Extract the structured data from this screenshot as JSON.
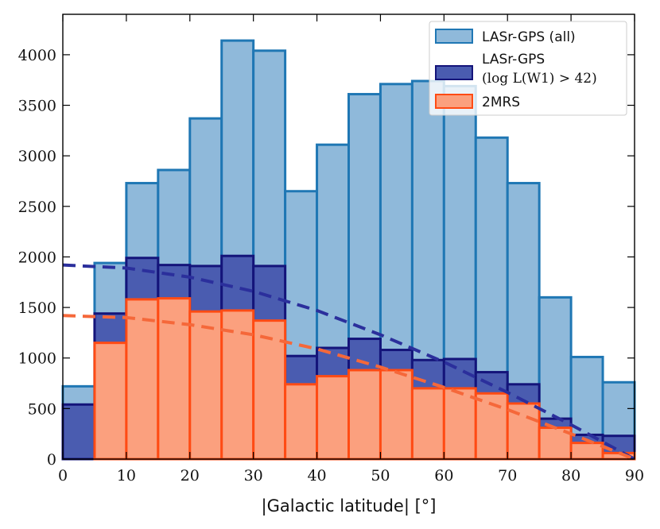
{
  "chart_data": {
    "type": "histogram",
    "xlabel": "|Galactic latitude| [°]",
    "ylabel": "",
    "xlim": [
      0,
      90
    ],
    "ylim": [
      0,
      4400
    ],
    "x_ticks": [
      0,
      10,
      20,
      30,
      40,
      50,
      60,
      70,
      80,
      90
    ],
    "y_ticks": [
      0,
      500,
      1000,
      1500,
      2000,
      2500,
      3000,
      3500,
      4000
    ],
    "bin_edges": [
      0,
      5,
      10,
      15,
      20,
      25,
      30,
      35,
      40,
      45,
      50,
      55,
      60,
      65,
      70,
      75,
      80,
      85,
      90
    ],
    "series": [
      {
        "name": "LASr-GPS (all)",
        "face_color": "#8fb9da",
        "edge_color": "#1f77b4",
        "values": [
          720,
          1940,
          2730,
          2860,
          3370,
          4140,
          4040,
          2650,
          3110,
          3610,
          3710,
          3740,
          3690,
          3180,
          2730,
          1600,
          1010,
          760
        ]
      },
      {
        "name": "LASr-GPS",
        "name_line2": "(log L(W1) > 42)",
        "face_color": "#4a5cb0",
        "edge_color": "#14147a",
        "values": [
          540,
          1440,
          1990,
          1920,
          1910,
          2010,
          1910,
          1020,
          1100,
          1190,
          1080,
          980,
          990,
          860,
          740,
          400,
          240,
          230
        ]
      },
      {
        "name": "2MRS",
        "face_color": "#fba07e",
        "edge_color": "#ff4b14",
        "values": [
          0,
          1150,
          1580,
          1590,
          1460,
          1470,
          1370,
          740,
          820,
          880,
          880,
          700,
          700,
          650,
          550,
          310,
          160,
          60
        ]
      }
    ],
    "fit_curves": [
      {
        "name": "LASr-GPS (log L(W1) > 42) fit",
        "color": "#2b2f9c",
        "x": [
          0,
          10,
          20,
          30,
          40,
          50,
          60,
          70,
          80,
          90
        ],
        "y": [
          1920,
          1890,
          1800,
          1660,
          1470,
          1230,
          960,
          660,
          340,
          0
        ]
      },
      {
        "name": "2MRS fit",
        "color": "#f5683a",
        "x": [
          0,
          10,
          20,
          30,
          40,
          50,
          60,
          70,
          80,
          90
        ],
        "y": [
          1420,
          1400,
          1330,
          1230,
          1090,
          910,
          710,
          490,
          250,
          0
        ]
      }
    ],
    "legend_position": "top-right"
  }
}
